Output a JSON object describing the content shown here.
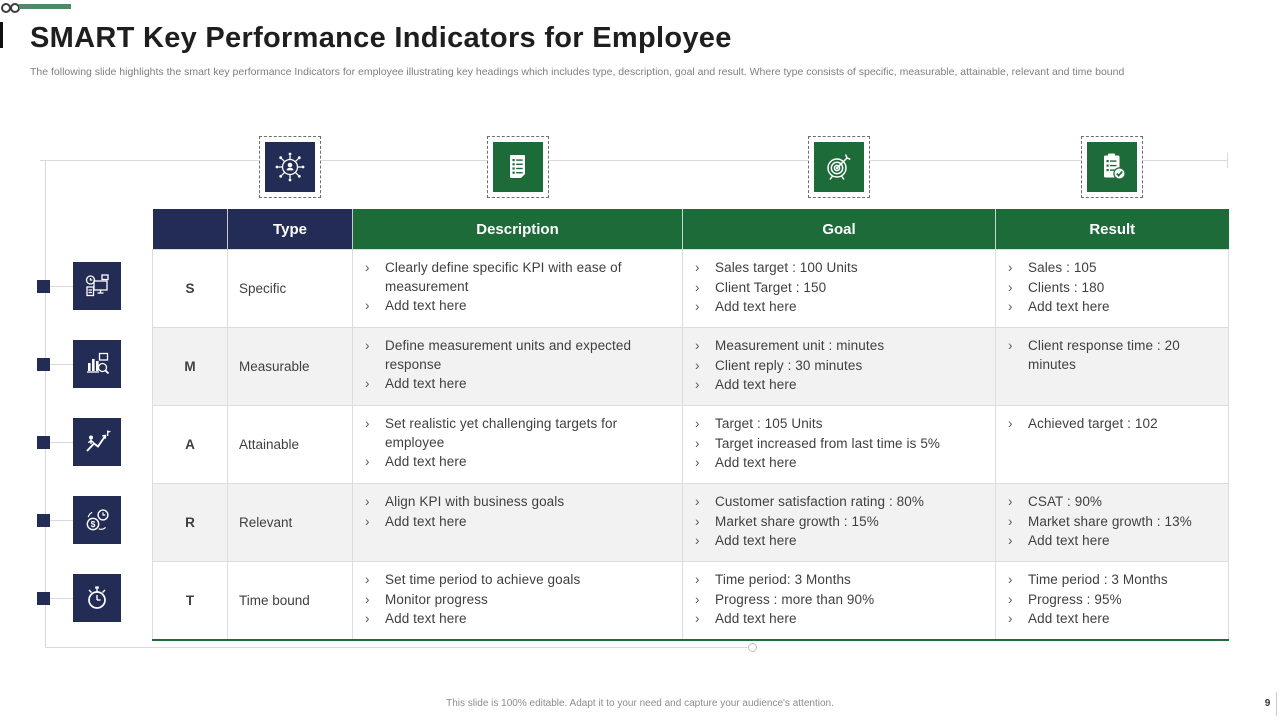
{
  "slide": {
    "title": "SMART Key Performance Indicators for Employee",
    "subtitle": "The following slide highlights the smart key performance Indicators for employee illustrating key headings which includes type, description, goal and result. Where type consists of specific, measurable, attainable, relevant and time bound",
    "footer": "This slide is 100% editable. Adapt it to your need and capture your audience's attention.",
    "page_number": "9"
  },
  "colors": {
    "navy": "#232C55",
    "green": "#1E6B3A",
    "deco_green": "#4F8A66",
    "row_alt": "#F2F2F2",
    "line": "#D9D9D9",
    "text_body": "#3F3F3F",
    "text_muted": "#7F7F7F"
  },
  "top_icons": [
    {
      "name": "person-network-icon",
      "bg": "navy"
    },
    {
      "name": "report-list-icon",
      "bg": "green"
    },
    {
      "name": "target-arrow-icon",
      "bg": "green"
    },
    {
      "name": "checklist-check-icon",
      "bg": "green"
    }
  ],
  "side_icons": [
    {
      "name": "kpi-dashboard-icon"
    },
    {
      "name": "chart-analysis-icon"
    },
    {
      "name": "growth-achievement-icon"
    },
    {
      "name": "value-time-icon"
    },
    {
      "name": "stopwatch-icon"
    }
  ],
  "table": {
    "bullet_char": "›",
    "headers": [
      "",
      "Type",
      "Description",
      "Goal",
      "Result"
    ],
    "rows": [
      {
        "letter": "S",
        "type": "Specific",
        "description": [
          "Clearly define specific KPI with ease of measurement",
          "Add text here"
        ],
        "goal": [
          "Sales target : 100 Units",
          "Client Target : 150",
          "Add text here"
        ],
        "result": [
          "Sales : 105",
          "Clients : 180",
          "Add text here"
        ]
      },
      {
        "letter": "M",
        "type": "Measurable",
        "description": [
          "Define measurement units and expected response",
          "Add text here"
        ],
        "goal": [
          "Measurement unit : minutes",
          "Client reply : 30 minutes",
          "Add text here"
        ],
        "result": [
          "Client response time : 20 minutes"
        ]
      },
      {
        "letter": "A",
        "type": "Attainable",
        "description": [
          "Set realistic yet challenging targets for employee",
          "Add text here"
        ],
        "goal": [
          "Target : 105 Units",
          "Target increased from last time is 5%",
          "Add text here"
        ],
        "result": [
          "Achieved target : 102"
        ]
      },
      {
        "letter": "R",
        "type": "Relevant",
        "description": [
          "Align KPI with business goals",
          "Add text here"
        ],
        "goal": [
          "Customer satisfaction rating : 80%",
          "Market share growth : 15%",
          "Add text here"
        ],
        "result": [
          "CSAT : 90%",
          "Market share growth : 13%",
          "Add text here"
        ]
      },
      {
        "letter": "T",
        "type": "Time bound",
        "description": [
          "Set time period to achieve goals",
          "Monitor progress",
          "Add text here"
        ],
        "goal": [
          "Time period: 3 Months",
          "Progress : more than 90%",
          "Add text here"
        ],
        "result": [
          "Time period : 3 Months",
          "Progress : 95%",
          "Add text here"
        ]
      }
    ]
  }
}
